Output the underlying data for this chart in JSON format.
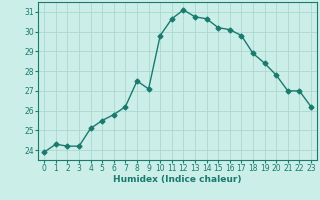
{
  "x": [
    0,
    1,
    2,
    3,
    4,
    5,
    6,
    7,
    8,
    9,
    10,
    11,
    12,
    13,
    14,
    15,
    16,
    17,
    18,
    19,
    20,
    21,
    22,
    23
  ],
  "y": [
    23.9,
    24.3,
    24.2,
    24.2,
    25.1,
    25.5,
    25.8,
    26.2,
    27.5,
    27.1,
    29.8,
    30.65,
    31.1,
    30.75,
    30.65,
    30.2,
    30.1,
    29.8,
    28.9,
    28.4,
    27.8,
    27.0,
    27.0,
    26.2
  ],
  "xlabel": "Humidex (Indice chaleur)",
  "xlim": [
    -0.5,
    23.5
  ],
  "ylim": [
    23.5,
    31.5
  ],
  "yticks": [
    24,
    25,
    26,
    27,
    28,
    29,
    30,
    31
  ],
  "xticks": [
    0,
    1,
    2,
    3,
    4,
    5,
    6,
    7,
    8,
    9,
    10,
    11,
    12,
    13,
    14,
    15,
    16,
    17,
    18,
    19,
    20,
    21,
    22,
    23
  ],
  "line_color": "#1a7a6e",
  "marker": "D",
  "marker_size": 2.5,
  "bg_color": "#cceee8",
  "grid_color": "#aad8d0",
  "line_width": 1.0
}
